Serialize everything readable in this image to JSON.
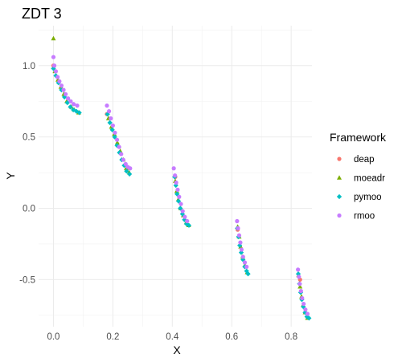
{
  "chart_data": {
    "type": "scatter",
    "title": "ZDT 3",
    "xlabel": "X",
    "ylabel": "Y",
    "xlim": [
      -0.05,
      0.87
    ],
    "ylim": [
      -0.83,
      1.28
    ],
    "x_ticks": [
      0.0,
      0.2,
      0.4,
      0.6,
      0.8
    ],
    "x_tick_labels": [
      "0.0",
      "0.2",
      "0.4",
      "0.6",
      "0.8"
    ],
    "y_ticks": [
      -0.5,
      0.0,
      0.5,
      1.0
    ],
    "y_tick_labels": [
      "-0.5",
      "0.0",
      "0.5",
      "1.0"
    ],
    "grid": true,
    "legend": {
      "title": "Framework",
      "position": "right"
    },
    "series": [
      {
        "name": "deap",
        "marker": "circle",
        "color": "#F8766D",
        "points": [
          [
            0.0,
            1.0
          ],
          [
            0.18,
            0.66
          ],
          [
            0.41,
            0.22
          ],
          [
            0.62,
            -0.15
          ],
          [
            0.83,
            -0.5
          ]
        ]
      },
      {
        "name": "moeadr",
        "marker": "triangle",
        "color": "#7CAE00",
        "points": [
          [
            0.0,
            1.19
          ],
          [
            0.005,
            0.96
          ],
          [
            0.015,
            0.9
          ],
          [
            0.025,
            0.85
          ],
          [
            0.035,
            0.8
          ],
          [
            0.045,
            0.75
          ],
          [
            0.06,
            0.71
          ],
          [
            0.07,
            0.69
          ],
          [
            0.085,
            0.67
          ],
          [
            0.185,
            0.63
          ],
          [
            0.195,
            0.57
          ],
          [
            0.205,
            0.52
          ],
          [
            0.215,
            0.46
          ],
          [
            0.225,
            0.4
          ],
          [
            0.235,
            0.34
          ],
          [
            0.245,
            0.28
          ],
          [
            0.255,
            0.25
          ],
          [
            0.41,
            0.19
          ],
          [
            0.415,
            0.12
          ],
          [
            0.42,
            0.06
          ],
          [
            0.428,
            0.0
          ],
          [
            0.437,
            -0.05
          ],
          [
            0.447,
            -0.1
          ],
          [
            0.455,
            -0.12
          ],
          [
            0.62,
            -0.13
          ],
          [
            0.625,
            -0.2
          ],
          [
            0.63,
            -0.27
          ],
          [
            0.637,
            -0.34
          ],
          [
            0.644,
            -0.4
          ],
          [
            0.652,
            -0.45
          ],
          [
            0.825,
            -0.47
          ],
          [
            0.83,
            -0.55
          ],
          [
            0.835,
            -0.62
          ],
          [
            0.84,
            -0.68
          ],
          [
            0.847,
            -0.73
          ],
          [
            0.855,
            -0.77
          ]
        ]
      },
      {
        "name": "pymoo",
        "marker": "diamond",
        "color": "#00BFC4",
        "points": [
          [
            0.0,
            0.98
          ],
          [
            0.008,
            0.93
          ],
          [
            0.017,
            0.88
          ],
          [
            0.027,
            0.83
          ],
          [
            0.037,
            0.78
          ],
          [
            0.047,
            0.74
          ],
          [
            0.057,
            0.71
          ],
          [
            0.067,
            0.69
          ],
          [
            0.077,
            0.68
          ],
          [
            0.087,
            0.67
          ],
          [
            0.182,
            0.66
          ],
          [
            0.19,
            0.6
          ],
          [
            0.198,
            0.55
          ],
          [
            0.206,
            0.5
          ],
          [
            0.214,
            0.44
          ],
          [
            0.222,
            0.39
          ],
          [
            0.23,
            0.34
          ],
          [
            0.238,
            0.3
          ],
          [
            0.246,
            0.26
          ],
          [
            0.256,
            0.24
          ],
          [
            0.408,
            0.22
          ],
          [
            0.412,
            0.16
          ],
          [
            0.416,
            0.1
          ],
          [
            0.421,
            0.05
          ],
          [
            0.427,
            0.0
          ],
          [
            0.434,
            -0.04
          ],
          [
            0.441,
            -0.08
          ],
          [
            0.448,
            -0.11
          ],
          [
            0.456,
            -0.12
          ],
          [
            0.619,
            -0.14
          ],
          [
            0.623,
            -0.2
          ],
          [
            0.627,
            -0.26
          ],
          [
            0.632,
            -0.31
          ],
          [
            0.638,
            -0.36
          ],
          [
            0.644,
            -0.41
          ],
          [
            0.65,
            -0.44
          ],
          [
            0.655,
            -0.46
          ],
          [
            0.824,
            -0.46
          ],
          [
            0.828,
            -0.53
          ],
          [
            0.832,
            -0.59
          ],
          [
            0.836,
            -0.64
          ],
          [
            0.841,
            -0.69
          ],
          [
            0.847,
            -0.73
          ],
          [
            0.853,
            -0.76
          ],
          [
            0.86,
            -0.77
          ]
        ]
      },
      {
        "name": "rmoo",
        "marker": "circle",
        "color": "#C77CFF",
        "points": [
          [
            0.0,
            1.06
          ],
          [
            0.003,
            1.0
          ],
          [
            0.008,
            0.96
          ],
          [
            0.014,
            0.92
          ],
          [
            0.02,
            0.89
          ],
          [
            0.027,
            0.86
          ],
          [
            0.034,
            0.83
          ],
          [
            0.041,
            0.8
          ],
          [
            0.049,
            0.77
          ],
          [
            0.058,
            0.75
          ],
          [
            0.068,
            0.73
          ],
          [
            0.08,
            0.72
          ],
          [
            0.18,
            0.72
          ],
          [
            0.187,
            0.68
          ],
          [
            0.193,
            0.63
          ],
          [
            0.2,
            0.58
          ],
          [
            0.207,
            0.53
          ],
          [
            0.214,
            0.48
          ],
          [
            0.221,
            0.43
          ],
          [
            0.228,
            0.38
          ],
          [
            0.235,
            0.34
          ],
          [
            0.243,
            0.31
          ],
          [
            0.25,
            0.29
          ],
          [
            0.258,
            0.28
          ],
          [
            0.405,
            0.28
          ],
          [
            0.409,
            0.23
          ],
          [
            0.413,
            0.18
          ],
          [
            0.418,
            0.13
          ],
          [
            0.423,
            0.08
          ],
          [
            0.429,
            0.03
          ],
          [
            0.435,
            -0.02
          ],
          [
            0.442,
            -0.06
          ],
          [
            0.45,
            -0.09
          ],
          [
            0.618,
            -0.09
          ],
          [
            0.621,
            -0.14
          ],
          [
            0.625,
            -0.19
          ],
          [
            0.629,
            -0.24
          ],
          [
            0.633,
            -0.29
          ],
          [
            0.638,
            -0.34
          ],
          [
            0.644,
            -0.38
          ],
          [
            0.65,
            -0.41
          ],
          [
            0.823,
            -0.43
          ],
          [
            0.826,
            -0.48
          ],
          [
            0.829,
            -0.53
          ],
          [
            0.833,
            -0.58
          ],
          [
            0.837,
            -0.63
          ],
          [
            0.842,
            -0.67
          ],
          [
            0.848,
            -0.71
          ],
          [
            0.855,
            -0.74
          ]
        ]
      }
    ]
  }
}
